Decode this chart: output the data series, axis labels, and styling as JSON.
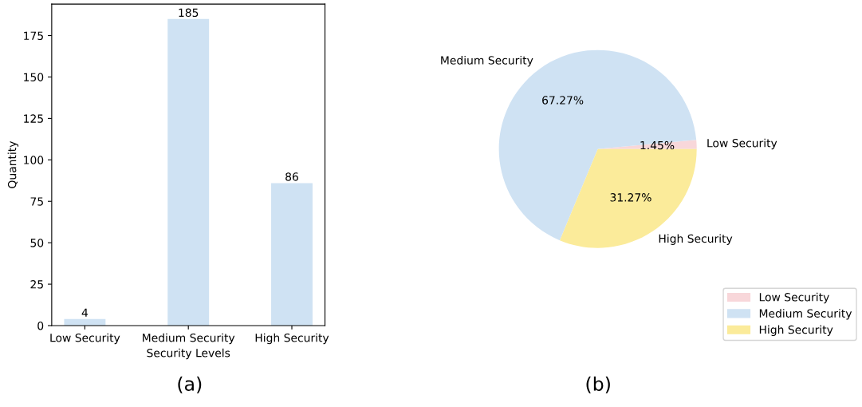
{
  "chart_data": [
    {
      "type": "bar",
      "xlabel": "Security Levels",
      "ylabel": "Quantity",
      "categories": [
        "Low Security",
        "Medium Security",
        "High Security"
      ],
      "values": [
        4,
        185,
        86
      ],
      "color": "#cfe2f3",
      "ylim": [
        0,
        194
      ],
      "yticks": [
        0,
        25,
        50,
        75,
        100,
        125,
        150,
        175
      ],
      "data_labels": true,
      "grid": false,
      "annotations": [
        "(a)"
      ]
    },
    {
      "type": "pie",
      "categories": [
        "Low Security",
        "Medium Security",
        "High Security"
      ],
      "values": [
        1.45,
        67.27,
        31.27
      ],
      "colors": [
        "#f8d7da",
        "#cfe2f3",
        "#fbeb9a"
      ],
      "value_labels": [
        "1.45%",
        "67.27%",
        "31.27%"
      ],
      "legend": "bottom right",
      "annotations": [
        "(b)"
      ]
    }
  ]
}
